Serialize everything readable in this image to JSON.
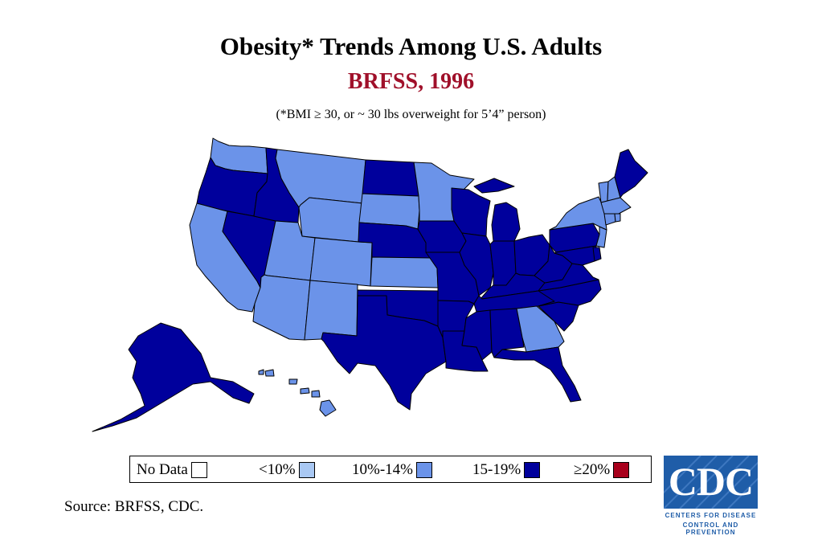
{
  "title": "Obesity* Trends Among U.S. Adults",
  "subtitle": "BRFSS, 1996",
  "note": "(*BMI ≥ 30, or ~ 30 lbs overweight for 5’4” person)",
  "colors": {
    "subtitle": "#a0102a",
    "no_data": "#ffffff",
    "lt10": "#a9c8f3",
    "10_14": "#6b93e9",
    "15_19": "#00009c",
    "ge20": "#a8001c",
    "border": "#000000"
  },
  "legend": [
    {
      "label": "No Data",
      "key": "no_data"
    },
    {
      "label": "<10%",
      "key": "lt10"
    },
    {
      "label": "10%-14%",
      "key": "10_14"
    },
    {
      "label": "15-19%",
      "key": "15_19"
    },
    {
      "label": "≥20%",
      "key": "ge20"
    }
  ],
  "states": {
    "WA": "10_14",
    "OR": "15_19",
    "CA": "10_14",
    "ID": "15_19",
    "NV": "15_19",
    "MT": "10_14",
    "WY": "10_14",
    "UT": "10_14",
    "AZ": "10_14",
    "CO": "10_14",
    "NM": "10_14",
    "ND": "15_19",
    "SD": "10_14",
    "NE": "15_19",
    "KS": "10_14",
    "OK": "15_19",
    "TX": "15_19",
    "MN": "10_14",
    "IA": "15_19",
    "MO": "15_19",
    "AR": "15_19",
    "LA": "15_19",
    "WI": "15_19",
    "IL": "15_19",
    "MI": "15_19",
    "IN": "15_19",
    "OH": "15_19",
    "KY": "15_19",
    "TN": "15_19",
    "MS": "15_19",
    "AL": "15_19",
    "GA": "10_14",
    "FL": "15_19",
    "SC": "15_19",
    "NC": "15_19",
    "VA": "15_19",
    "WV": "15_19",
    "PA": "15_19",
    "NY": "10_14",
    "VT": "10_14",
    "NH": "10_14",
    "ME": "15_19",
    "MA": "10_14",
    "CT": "10_14",
    "RI": "10_14",
    "NJ": "10_14",
    "DE": "15_19",
    "MD": "15_19",
    "AK": "15_19",
    "HI": "10_14"
  },
  "source": "Source: BRFSS, CDC.",
  "logo": {
    "text": "CDC",
    "line1": "CENTERS FOR DISEASE",
    "line2": "CONTROL AND PREVENTION"
  }
}
